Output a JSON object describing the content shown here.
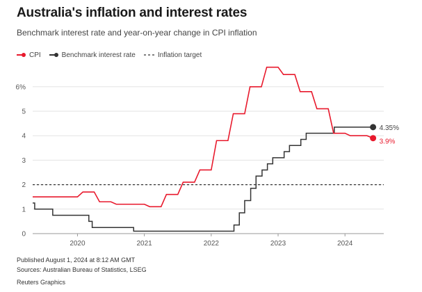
{
  "title": "Australia's inflation and interest rates",
  "subtitle": "Benchmark interest rate and year-on-year change in CPI inflation",
  "legend": {
    "cpi": "CPI",
    "rate": "Benchmark interest rate",
    "target": "Inflation target"
  },
  "footer": {
    "published": "Published August 1, 2024 at 8:12 AM GMT",
    "sources": "Sources: Australian Bureau of Statistics, LSEG",
    "credit": "Reuters Graphics"
  },
  "colors": {
    "cpi": "#e8192c",
    "rate": "#333333",
    "target": "#333333",
    "grid": "#e3e3e3"
  },
  "chart_data": {
    "type": "line",
    "ylim": [
      0,
      6.5
    ],
    "xlim": [
      2019.33,
      2024.58
    ],
    "y_ticks": [
      0,
      1,
      2,
      3,
      4,
      5,
      6
    ],
    "y_tick_labels": [
      "0",
      "1",
      "2",
      "3",
      "4",
      "5",
      "6%"
    ],
    "x_ticks": [
      2020,
      2021,
      2022,
      2023,
      2024
    ],
    "x_tick_labels": [
      "2020",
      "2021",
      "2022",
      "2023",
      "2024"
    ],
    "grid": true,
    "target_value": 2,
    "series": [
      {
        "name": "CPI",
        "end_label": "3.9%",
        "points": [
          [
            2019.33,
            1.5
          ],
          [
            2019.5,
            1.5
          ],
          [
            2019.75,
            1.5
          ],
          [
            2020.0,
            1.5
          ],
          [
            2020.08,
            1.7
          ],
          [
            2020.25,
            1.7
          ],
          [
            2020.33,
            1.3
          ],
          [
            2020.5,
            1.3
          ],
          [
            2020.58,
            1.2
          ],
          [
            2020.75,
            1.2
          ],
          [
            2021.0,
            1.2
          ],
          [
            2021.08,
            1.1
          ],
          [
            2021.25,
            1.1
          ],
          [
            2021.33,
            1.6
          ],
          [
            2021.5,
            1.6
          ],
          [
            2021.58,
            2.1
          ],
          [
            2021.75,
            2.1
          ],
          [
            2021.83,
            2.6
          ],
          [
            2022.0,
            2.6
          ],
          [
            2022.08,
            3.8
          ],
          [
            2022.25,
            3.8
          ],
          [
            2022.33,
            4.9
          ],
          [
            2022.5,
            4.9
          ],
          [
            2022.58,
            6.0
          ],
          [
            2022.75,
            6.0
          ],
          [
            2022.83,
            6.8
          ],
          [
            2023.0,
            6.8
          ],
          [
            2023.08,
            6.5
          ],
          [
            2023.25,
            6.5
          ],
          [
            2023.33,
            5.8
          ],
          [
            2023.5,
            5.8
          ],
          [
            2023.58,
            5.1
          ],
          [
            2023.75,
            5.1
          ],
          [
            2023.83,
            4.1
          ],
          [
            2024.0,
            4.1
          ],
          [
            2024.08,
            4.0
          ],
          [
            2024.25,
            4.0
          ],
          [
            2024.33,
            4.0
          ],
          [
            2024.42,
            3.9
          ]
        ]
      },
      {
        "name": "Benchmark interest rate",
        "end_label": "4.35%",
        "steps": [
          [
            2019.33,
            1.25
          ],
          [
            2019.36,
            1.0
          ],
          [
            2019.63,
            0.75
          ],
          [
            2020.17,
            0.5
          ],
          [
            2020.22,
            0.25
          ],
          [
            2020.84,
            0.1
          ],
          [
            2022.34,
            0.35
          ],
          [
            2022.42,
            0.85
          ],
          [
            2022.5,
            1.35
          ],
          [
            2022.59,
            1.85
          ],
          [
            2022.67,
            2.35
          ],
          [
            2022.76,
            2.6
          ],
          [
            2022.84,
            2.85
          ],
          [
            2022.92,
            3.1
          ],
          [
            2023.09,
            3.35
          ],
          [
            2023.17,
            3.6
          ],
          [
            2023.34,
            3.85
          ],
          [
            2023.42,
            4.1
          ],
          [
            2023.84,
            4.35
          ],
          [
            2024.42,
            4.35
          ]
        ]
      }
    ]
  }
}
